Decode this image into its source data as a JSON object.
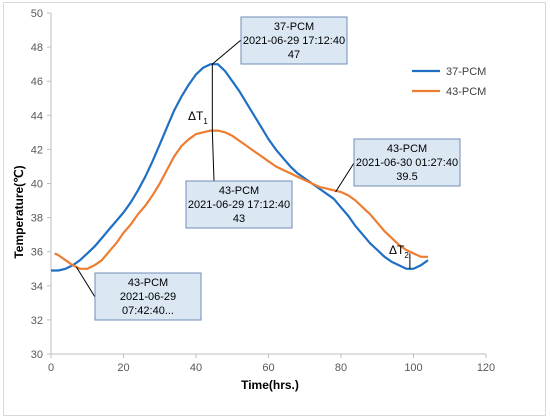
{
  "chart_data": {
    "type": "line",
    "title": "",
    "xlabel": "Time(hrs.)",
    "ylabel": "Temperature(℃)",
    "xlim": [
      0,
      120
    ],
    "ylim": [
      30,
      50
    ],
    "xticks": [
      0,
      20,
      40,
      60,
      80,
      100,
      120
    ],
    "yticks": [
      30,
      32,
      34,
      36,
      38,
      40,
      42,
      44,
      46,
      48,
      50
    ],
    "grid": false,
    "legend_position": "right",
    "series": [
      {
        "name": "37-PCM",
        "color": "#1f6fc5",
        "points": [
          [
            0,
            34.9
          ],
          [
            2,
            34.9
          ],
          [
            4,
            35.0
          ],
          [
            6,
            35.2
          ],
          [
            8,
            35.5
          ],
          [
            10,
            35.9
          ],
          [
            12,
            36.3
          ],
          [
            14,
            36.8
          ],
          [
            16,
            37.3
          ],
          [
            18,
            37.8
          ],
          [
            20,
            38.3
          ],
          [
            22,
            38.9
          ],
          [
            24,
            39.6
          ],
          [
            26,
            40.4
          ],
          [
            28,
            41.3
          ],
          [
            30,
            42.3
          ],
          [
            32,
            43.3
          ],
          [
            34,
            44.3
          ],
          [
            36,
            45.1
          ],
          [
            38,
            45.8
          ],
          [
            40,
            46.4
          ],
          [
            42,
            46.8
          ],
          [
            44,
            47.0
          ],
          [
            46,
            47.0
          ],
          [
            48,
            46.6
          ],
          [
            50,
            46.0
          ],
          [
            52,
            45.4
          ],
          [
            54,
            44.7
          ],
          [
            56,
            44.0
          ],
          [
            58,
            43.3
          ],
          [
            60,
            42.6
          ],
          [
            62,
            42.0
          ],
          [
            64,
            41.5
          ],
          [
            66,
            41.0
          ],
          [
            68,
            40.6
          ],
          [
            70,
            40.3
          ],
          [
            72,
            40.0
          ],
          [
            74,
            39.7
          ],
          [
            76,
            39.4
          ],
          [
            78,
            39.1
          ],
          [
            80,
            38.6
          ],
          [
            82,
            38.1
          ],
          [
            84,
            37.5
          ],
          [
            86,
            37.0
          ],
          [
            88,
            36.5
          ],
          [
            90,
            36.1
          ],
          [
            92,
            35.7
          ],
          [
            94,
            35.4
          ],
          [
            96,
            35.2
          ],
          [
            98,
            35.0
          ],
          [
            100,
            35.0
          ],
          [
            102,
            35.2
          ],
          [
            104,
            35.5
          ]
        ]
      },
      {
        "name": "43-PCM",
        "color": "#ed7d31",
        "points": [
          [
            1,
            35.9
          ],
          [
            2,
            35.8
          ],
          [
            4,
            35.5
          ],
          [
            6,
            35.2
          ],
          [
            8,
            35.0
          ],
          [
            10,
            35.0
          ],
          [
            12,
            35.2
          ],
          [
            14,
            35.5
          ],
          [
            16,
            36.0
          ],
          [
            18,
            36.5
          ],
          [
            20,
            37.1
          ],
          [
            22,
            37.6
          ],
          [
            24,
            38.2
          ],
          [
            26,
            38.7
          ],
          [
            28,
            39.3
          ],
          [
            30,
            40.0
          ],
          [
            32,
            40.8
          ],
          [
            34,
            41.6
          ],
          [
            36,
            42.2
          ],
          [
            38,
            42.6
          ],
          [
            40,
            42.9
          ],
          [
            42,
            43.0
          ],
          [
            44,
            43.1
          ],
          [
            46,
            43.1
          ],
          [
            48,
            43.0
          ],
          [
            50,
            42.8
          ],
          [
            52,
            42.5
          ],
          [
            54,
            42.2
          ],
          [
            56,
            41.9
          ],
          [
            58,
            41.6
          ],
          [
            60,
            41.3
          ],
          [
            62,
            41.0
          ],
          [
            64,
            40.8
          ],
          [
            66,
            40.6
          ],
          [
            68,
            40.4
          ],
          [
            70,
            40.2
          ],
          [
            72,
            40.0
          ],
          [
            74,
            39.8
          ],
          [
            76,
            39.7
          ],
          [
            78,
            39.6
          ],
          [
            80,
            39.5
          ],
          [
            82,
            39.3
          ],
          [
            84,
            39.0
          ],
          [
            86,
            38.6
          ],
          [
            88,
            38.2
          ],
          [
            90,
            37.7
          ],
          [
            92,
            37.2
          ],
          [
            94,
            36.8
          ],
          [
            96,
            36.4
          ],
          [
            98,
            36.1
          ],
          [
            100,
            35.9
          ],
          [
            102,
            35.7
          ],
          [
            104,
            35.7
          ]
        ]
      }
    ],
    "annotations": [
      {
        "lines": [
          "37-PCM",
          "2021-06-29 17:12:40",
          "47"
        ],
        "target": [
          44.5,
          47.0
        ]
      },
      {
        "lines": [
          "43-PCM",
          "2021-06-29 17:12:40",
          "43"
        ],
        "target": [
          44.5,
          43.1
        ]
      },
      {
        "lines": [
          "43-PCM",
          "2021-06-30 01:27:40",
          "39.5"
        ],
        "target": [
          78.5,
          39.5
        ]
      },
      {
        "lines": [
          "43-PCM",
          "2021-06-29",
          "07:42:40..."
        ],
        "target": [
          7.0,
          35.1
        ]
      }
    ],
    "delta_labels": [
      {
        "text": "ΔT",
        "sub": "1"
      },
      {
        "text": "ΔT",
        "sub": "2"
      }
    ]
  }
}
